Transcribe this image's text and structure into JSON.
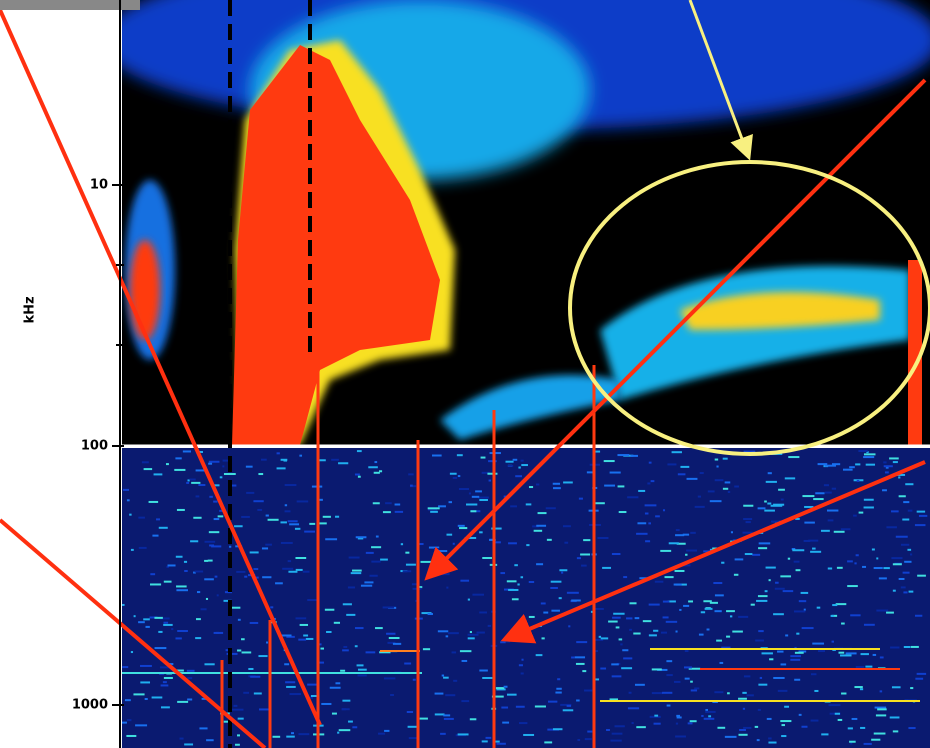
{
  "figure": {
    "y_axis_label": "kHz",
    "tick_labels": [
      "10",
      "100",
      "1000"
    ]
  }
}
